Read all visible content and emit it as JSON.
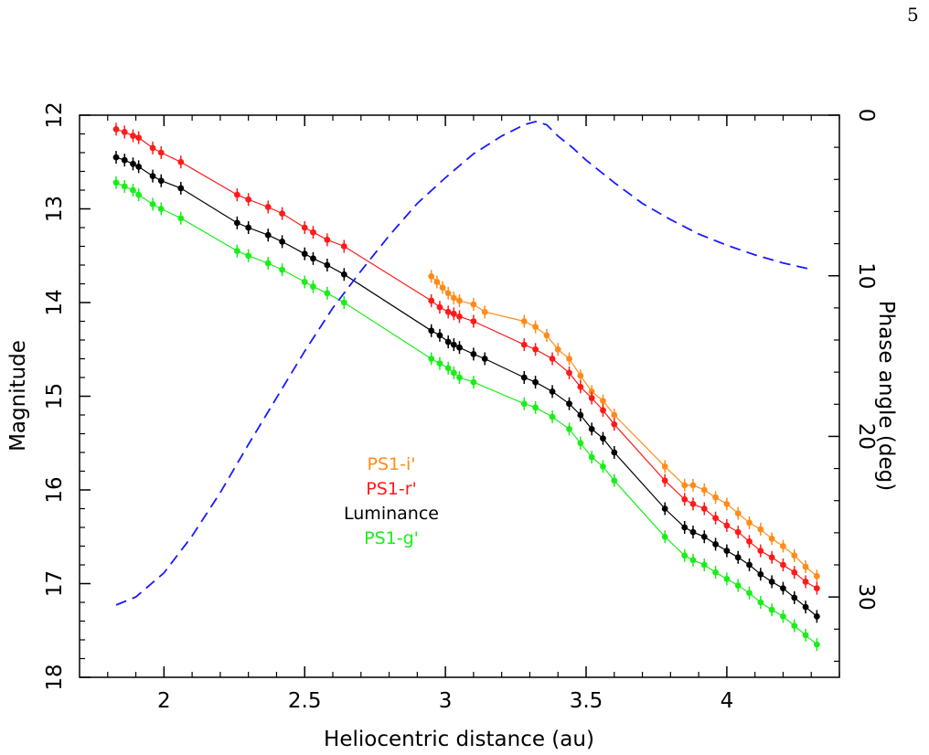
{
  "page_number": "5",
  "chart_data": {
    "type": "scatter",
    "title": "",
    "xlabel": "Heliocentric distance (au)",
    "ylabel": "Magnitude",
    "y2label": "Phase angle (deg)",
    "xlim": [
      1.7,
      4.4
    ],
    "ylim": [
      12,
      18
    ],
    "y_reversed": true,
    "y2lim": [
      0,
      35
    ],
    "y2_reversed": true,
    "x_ticks": [
      2,
      2.5,
      3,
      3.5,
      4
    ],
    "x_tick_labels": [
      "2",
      "2.5",
      "3",
      "3.5",
      "4"
    ],
    "y_ticks": [
      12,
      13,
      14,
      15,
      16,
      17,
      18
    ],
    "y_tick_labels": [
      "12",
      "13",
      "14",
      "15",
      "16",
      "17",
      "18"
    ],
    "y2_ticks": [
      0,
      10,
      20,
      30
    ],
    "y2_tick_labels": [
      "0",
      "10",
      "20",
      "30"
    ],
    "grid": false,
    "legend_position": "lower-left-center",
    "series": [
      {
        "name": "PS1-i'",
        "color": "#ff8c1a",
        "style": "points+line",
        "x": [
          2.95,
          2.97,
          2.99,
          3.01,
          3.03,
          3.05,
          3.1,
          3.14,
          3.28,
          3.32,
          3.36,
          3.4,
          3.44,
          3.48,
          3.52,
          3.56,
          3.6,
          3.78,
          3.85,
          3.88,
          3.92,
          3.96,
          4.0,
          4.04,
          4.08,
          4.12,
          4.16,
          4.2,
          4.24,
          4.28,
          4.32
        ],
        "y": [
          13.72,
          13.78,
          13.84,
          13.9,
          13.95,
          13.98,
          14.02,
          14.1,
          14.2,
          14.26,
          14.35,
          14.5,
          14.6,
          14.78,
          14.95,
          15.05,
          15.2,
          15.75,
          15.95,
          15.95,
          16.0,
          16.08,
          16.15,
          16.25,
          16.35,
          16.42,
          16.52,
          16.6,
          16.7,
          16.82,
          16.92
        ]
      },
      {
        "name": "PS1-r'",
        "color": "#ff1a1a",
        "style": "points+line",
        "x": [
          1.83,
          1.86,
          1.89,
          1.91,
          1.96,
          1.99,
          2.06,
          2.26,
          2.3,
          2.37,
          2.42,
          2.5,
          2.53,
          2.58,
          2.64,
          2.95,
          2.98,
          3.01,
          3.03,
          3.05,
          3.1,
          3.28,
          3.32,
          3.38,
          3.44,
          3.48,
          3.52,
          3.56,
          3.6,
          3.78,
          3.85,
          3.88,
          3.92,
          3.96,
          4.0,
          4.04,
          4.08,
          4.12,
          4.16,
          4.2,
          4.24,
          4.28,
          4.32
        ],
        "y": [
          12.15,
          12.18,
          12.22,
          12.24,
          12.35,
          12.4,
          12.5,
          12.85,
          12.9,
          12.98,
          13.05,
          13.2,
          13.25,
          13.33,
          13.4,
          13.98,
          14.05,
          14.1,
          14.12,
          14.15,
          14.2,
          14.45,
          14.5,
          14.6,
          14.75,
          14.9,
          15.02,
          15.15,
          15.3,
          15.9,
          16.1,
          16.15,
          16.2,
          16.3,
          16.38,
          16.45,
          16.55,
          16.65,
          16.72,
          16.8,
          16.88,
          16.98,
          17.05
        ]
      },
      {
        "name": "Luminance",
        "color": "#000000",
        "style": "points+line",
        "x": [
          1.83,
          1.86,
          1.89,
          1.91,
          1.96,
          1.99,
          2.06,
          2.26,
          2.3,
          2.37,
          2.42,
          2.5,
          2.53,
          2.58,
          2.64,
          2.95,
          2.98,
          3.01,
          3.03,
          3.05,
          3.1,
          3.14,
          3.28,
          3.32,
          3.38,
          3.44,
          3.48,
          3.52,
          3.56,
          3.6,
          3.78,
          3.85,
          3.88,
          3.92,
          3.96,
          4.0,
          4.04,
          4.08,
          4.12,
          4.16,
          4.2,
          4.24,
          4.28,
          4.32
        ],
        "y": [
          12.45,
          12.48,
          12.52,
          12.55,
          12.65,
          12.7,
          12.78,
          13.15,
          13.2,
          13.28,
          13.35,
          13.48,
          13.53,
          13.6,
          13.7,
          14.3,
          14.35,
          14.42,
          14.45,
          14.48,
          14.55,
          14.6,
          14.8,
          14.85,
          14.95,
          15.08,
          15.2,
          15.35,
          15.45,
          15.6,
          16.2,
          16.4,
          16.45,
          16.5,
          16.58,
          16.65,
          16.72,
          16.8,
          16.9,
          16.98,
          17.05,
          17.15,
          17.25,
          17.35
        ]
      },
      {
        "name": "PS1-g'",
        "color": "#1aee1a",
        "style": "points+line",
        "x": [
          1.83,
          1.86,
          1.89,
          1.91,
          1.96,
          1.99,
          2.06,
          2.26,
          2.3,
          2.37,
          2.42,
          2.5,
          2.53,
          2.58,
          2.64,
          2.95,
          2.98,
          3.01,
          3.03,
          3.05,
          3.1,
          3.28,
          3.32,
          3.38,
          3.44,
          3.48,
          3.52,
          3.56,
          3.6,
          3.78,
          3.85,
          3.88,
          3.92,
          3.96,
          4.0,
          4.04,
          4.08,
          4.12,
          4.16,
          4.2,
          4.24,
          4.28,
          4.32
        ],
        "y": [
          12.72,
          12.76,
          12.8,
          12.85,
          12.95,
          13.0,
          13.1,
          13.45,
          13.5,
          13.58,
          13.65,
          13.78,
          13.83,
          13.9,
          14.0,
          14.6,
          14.65,
          14.7,
          14.75,
          14.8,
          14.85,
          15.08,
          15.12,
          15.22,
          15.35,
          15.5,
          15.65,
          15.75,
          15.9,
          16.5,
          16.7,
          16.75,
          16.8,
          16.88,
          16.95,
          17.02,
          17.1,
          17.2,
          17.28,
          17.35,
          17.45,
          17.55,
          17.65
        ]
      },
      {
        "name": "",
        "axis": "right",
        "color": "#1a1aff",
        "style": "dashed-line",
        "x": [
          1.83,
          1.9,
          2.0,
          2.1,
          2.2,
          2.3,
          2.4,
          2.5,
          2.6,
          2.7,
          2.8,
          2.9,
          3.0,
          3.1,
          3.2,
          3.28,
          3.32,
          3.36,
          3.4,
          3.45,
          3.5,
          3.6,
          3.7,
          3.8,
          3.9,
          4.0,
          4.1,
          4.2,
          4.3
        ],
        "y": [
          30.5,
          30.0,
          28.5,
          26.2,
          23.5,
          20.5,
          17.6,
          14.7,
          12.0,
          9.7,
          7.5,
          5.5,
          3.9,
          2.4,
          1.3,
          0.6,
          0.4,
          0.6,
          1.3,
          2.0,
          2.8,
          4.2,
          5.5,
          6.5,
          7.4,
          8.1,
          8.7,
          9.2,
          9.6
        ]
      }
    ]
  }
}
